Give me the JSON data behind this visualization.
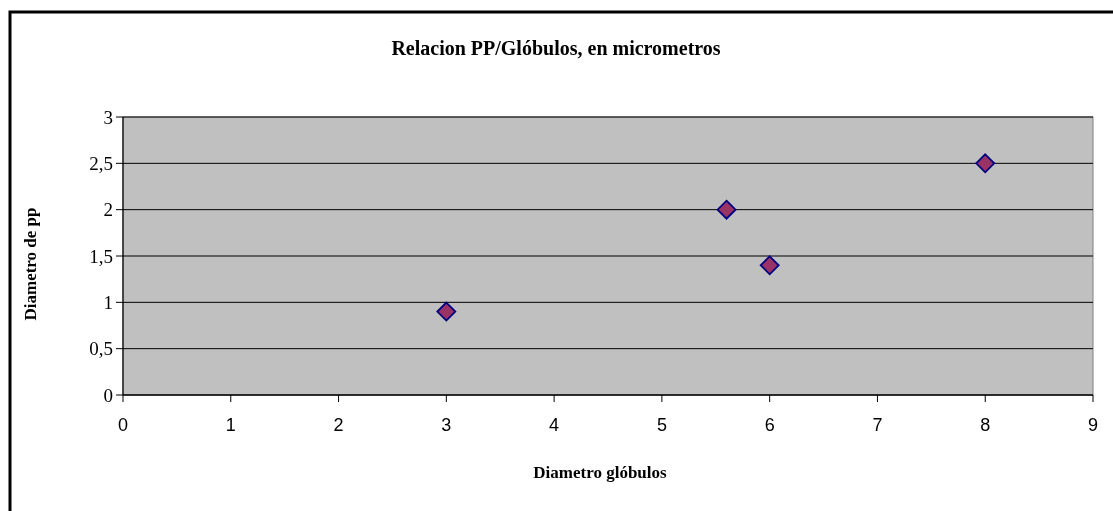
{
  "chart_data": {
    "type": "scatter",
    "title": "Relacion PP/Glóbulos, en micrometros",
    "xlabel": "Diametro glóbulos",
    "ylabel": "Diametro de pp",
    "series": [
      {
        "color": "#993366",
        "x": [
          3,
          5.6,
          6,
          8
        ],
        "values": [
          0.9,
          2.0,
          1.4,
          2.5
        ]
      }
    ],
    "xlim": [
      0,
      9
    ],
    "xticks": [
      0,
      1,
      2,
      3,
      4,
      5,
      6,
      7,
      8,
      9
    ],
    "ylim": [
      0,
      3
    ],
    "yticks": [
      0,
      {
        "value": 0.5,
        "label": "0,5"
      },
      1,
      {
        "value": 1.5,
        "label": "1,5"
      },
      2,
      {
        "value": 2.5,
        "label": "2,5"
      },
      3
    ],
    "grid": "y",
    "marker": "diamond"
  }
}
